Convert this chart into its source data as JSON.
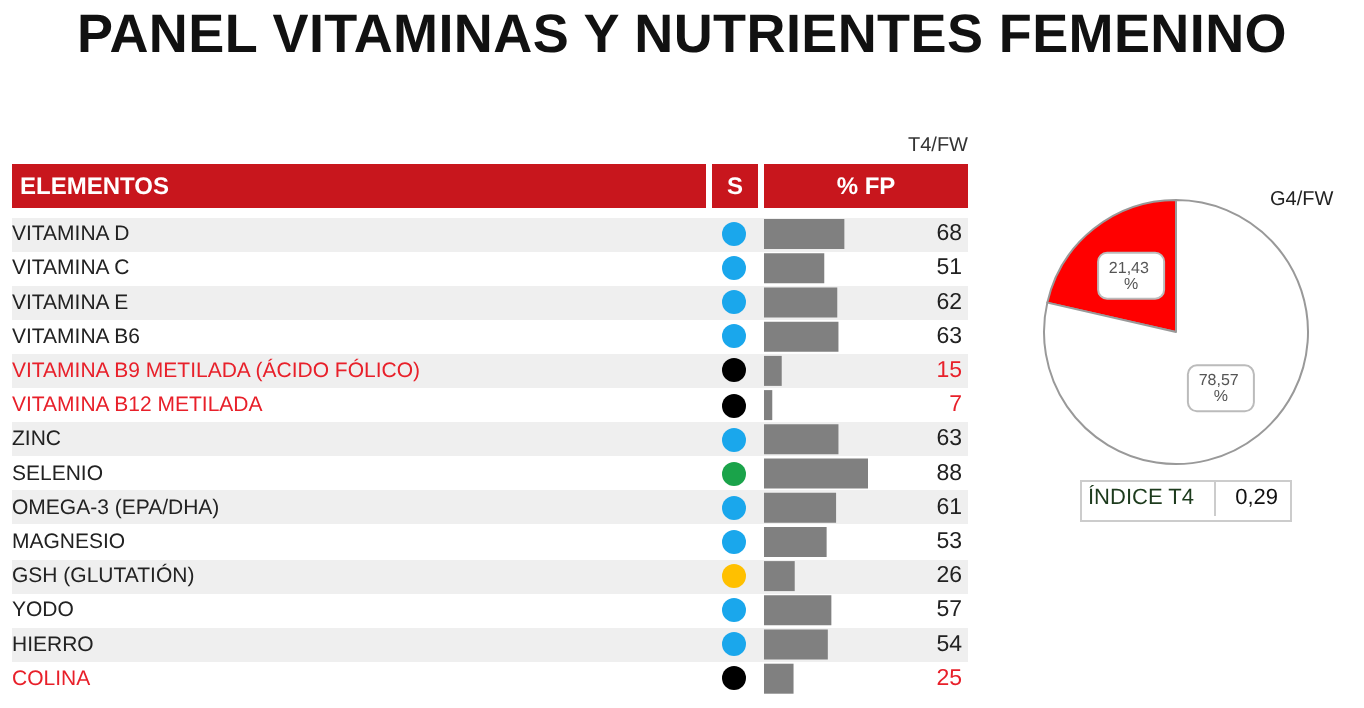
{
  "chart_data": [
    {
      "type": "bar",
      "orientation": "horizontal",
      "title": "PANEL VITAMINAS Y NUTRIENTES FEMENINO",
      "annotations": [
        "T4/FW"
      ],
      "ylabel": "ELEMENTOS",
      "xlabel": "% FP",
      "data_labels": true,
      "tick_labels": "y",
      "categories": [
        "VITAMINA D",
        "VITAMINA C",
        "VITAMINA E",
        "VITAMINA B6",
        "VITAMINA B9 METILADA (ÁCIDO FÓLICO)",
        "VITAMINA B12 METILADA",
        "ZINC",
        "SELENIO",
        "OMEGA-3 (EPA/DHA)",
        "MAGNESIO",
        "GSH (GLUTATIÓN)",
        "YODO",
        "HIERRO",
        "COLINA"
      ],
      "series": [
        {
          "color": "#808080",
          "values": [
            68,
            51,
            62,
            63,
            15,
            7,
            63,
            88,
            61,
            53,
            26,
            57,
            54,
            25
          ]
        },
        {
          "type": "other",
          "name": "S",
          "values": [
            null,
            null,
            null,
            null,
            null,
            null,
            null,
            null,
            null,
            null,
            null,
            null,
            null,
            null
          ],
          "colors": [
            "#1aa7ec",
            "#1aa7ec",
            "#1aa7ec",
            "#1aa7ec",
            "#000000",
            "#000000",
            "#1aa7ec",
            "#1aa34a",
            "#1aa7ec",
            "#1aa7ec",
            "#ffc000",
            "#1aa7ec",
            "#1aa7ec",
            "#000000"
          ]
        }
      ]
    },
    {
      "type": "pie",
      "title": "G4/FW",
      "categories": [
        null,
        null
      ],
      "values": [
        21.43,
        78.57
      ],
      "colors": [
        "#ff0000",
        "#ffffff"
      ],
      "value_labels": [
        "21,43 %",
        "78,57 %"
      ]
    },
    {
      "type": "other",
      "categories": [
        "ÍNDICE T4"
      ],
      "values": [
        0.29
      ],
      "value_labels": [
        "0,29"
      ]
    }
  ]
}
